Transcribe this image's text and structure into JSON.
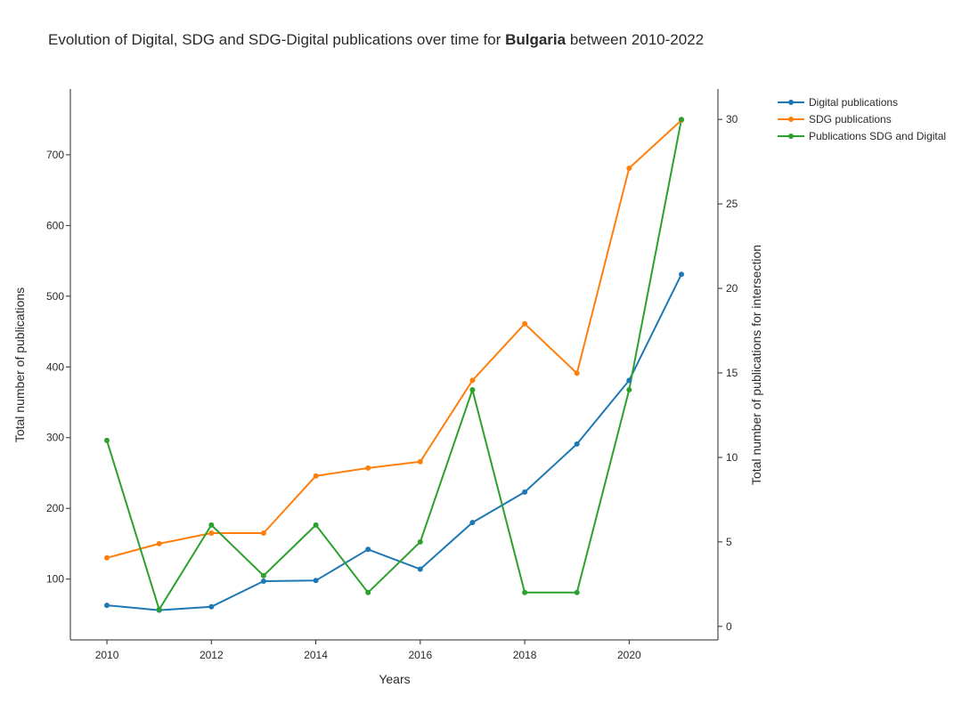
{
  "chart_data": {
    "type": "line",
    "title_prefix": "Evolution of Digital, SDG and SDG-Digital publications over time for ",
    "title_bold": "Bulgaria",
    "title_suffix": " between 2010-2022",
    "xlabel": "Years",
    "ylabel_left": "Total number of publications",
    "ylabel_right": "Total number of publications for intersection",
    "x": [
      2010,
      2011,
      2012,
      2013,
      2014,
      2015,
      2016,
      2017,
      2018,
      2019,
      2020,
      2021
    ],
    "x_ticks": [
      "2010",
      "2012",
      "2014",
      "2016",
      "2018",
      "2020"
    ],
    "y_left_ticks": [
      "100",
      "200",
      "300",
      "400",
      "500",
      "600",
      "700"
    ],
    "y_right_ticks": [
      "0",
      "5",
      "10",
      "15",
      "20",
      "25",
      "30"
    ],
    "xlim": [
      2009.3,
      2021.7
    ],
    "ylim_left": [
      14,
      793
    ],
    "ylim_right": [
      -0.8,
      31.8
    ],
    "legend_position": "top-right",
    "grid": false,
    "series": [
      {
        "name": "Digital publications",
        "axis": "left",
        "color": "#1f77b4",
        "values": [
          63,
          56,
          61,
          97,
          98,
          142,
          114,
          180,
          223,
          291,
          381,
          531
        ]
      },
      {
        "name": "SDG publications",
        "axis": "left",
        "color": "#ff7f0e",
        "values": [
          130,
          150,
          165,
          165,
          246,
          257,
          266,
          381,
          461,
          391,
          681,
          749
        ]
      },
      {
        "name": "Publications SDG and Digital",
        "axis": "right",
        "color": "#2ca02c",
        "values": [
          11,
          1,
          6,
          3,
          6,
          2,
          5,
          14,
          2,
          2,
          14,
          30
        ]
      }
    ]
  }
}
